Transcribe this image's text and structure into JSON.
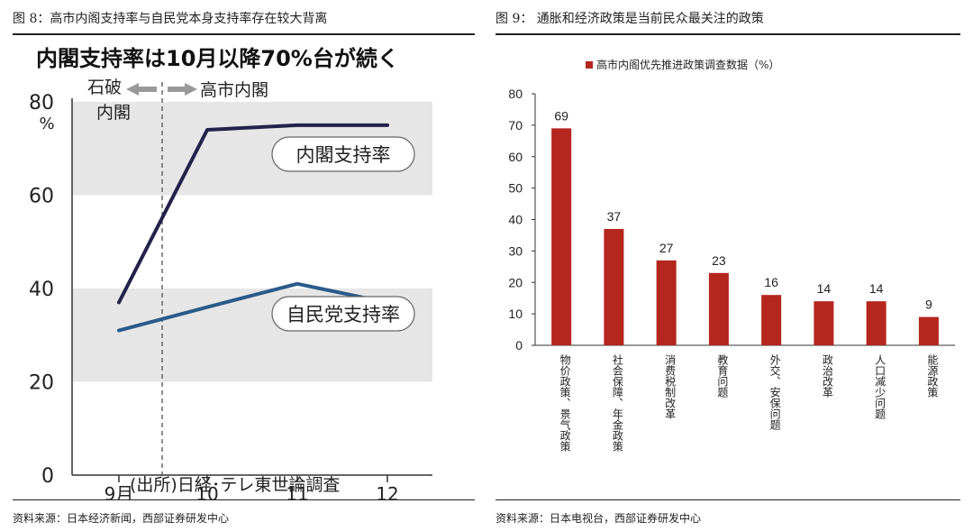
{
  "left": {
    "figure_title": "图 8：高市内阁支持率与自民党本身支持率存在较大背离",
    "source": "资料来源：日本经济新闻，西部证券研发中心",
    "chart_data": {
      "type": "line",
      "title": "内閣支持率は10月以降70%台が続く",
      "categories": [
        "9月",
        "10",
        "11",
        "12"
      ],
      "series": [
        {
          "name": "内閣支持率",
          "values": [
            37,
            74,
            75,
            75
          ],
          "color": "#22224a"
        },
        {
          "name": "自民党支持率",
          "values": [
            31,
            36,
            41,
            37
          ],
          "color": "#2a5a8a"
        }
      ],
      "ylim": [
        0,
        80
      ],
      "yticks": [
        0,
        20,
        40,
        60,
        80
      ],
      "yunit": "%",
      "shaded_bands": [
        [
          20,
          40
        ],
        [
          60,
          80
        ]
      ],
      "band_color": "#e6e6e6",
      "annotations": {
        "before": "石破\n内閣",
        "after": "高市内閣"
      },
      "source_note": "(出所)日経･テレ東世論調査"
    }
  },
  "right": {
    "figure_title": "图 9：  通胀和经济政策是当前民众最关注的政策",
    "source": "资料来源：日本电视台，西部证券研发中心",
    "chart_data": {
      "type": "bar",
      "categories": [
        "物价政策、景气政策",
        "社会保障、年金政策",
        "消费税制改革",
        "教育问题",
        "外交、安保问题",
        "政治改革",
        "人口减少问题",
        "能源政策"
      ],
      "series": [
        {
          "name": "高市内阁优先推进政策调查数据（%）",
          "values": [
            69,
            37,
            27,
            23,
            16,
            14,
            14,
            9
          ],
          "color": "#b5261e"
        }
      ],
      "ylim": [
        0,
        80
      ],
      "yticks": [
        0,
        10,
        20,
        30,
        40,
        50,
        60,
        70,
        80
      ],
      "legend_position": "top-center",
      "data_labels": true,
      "grid": false
    }
  }
}
